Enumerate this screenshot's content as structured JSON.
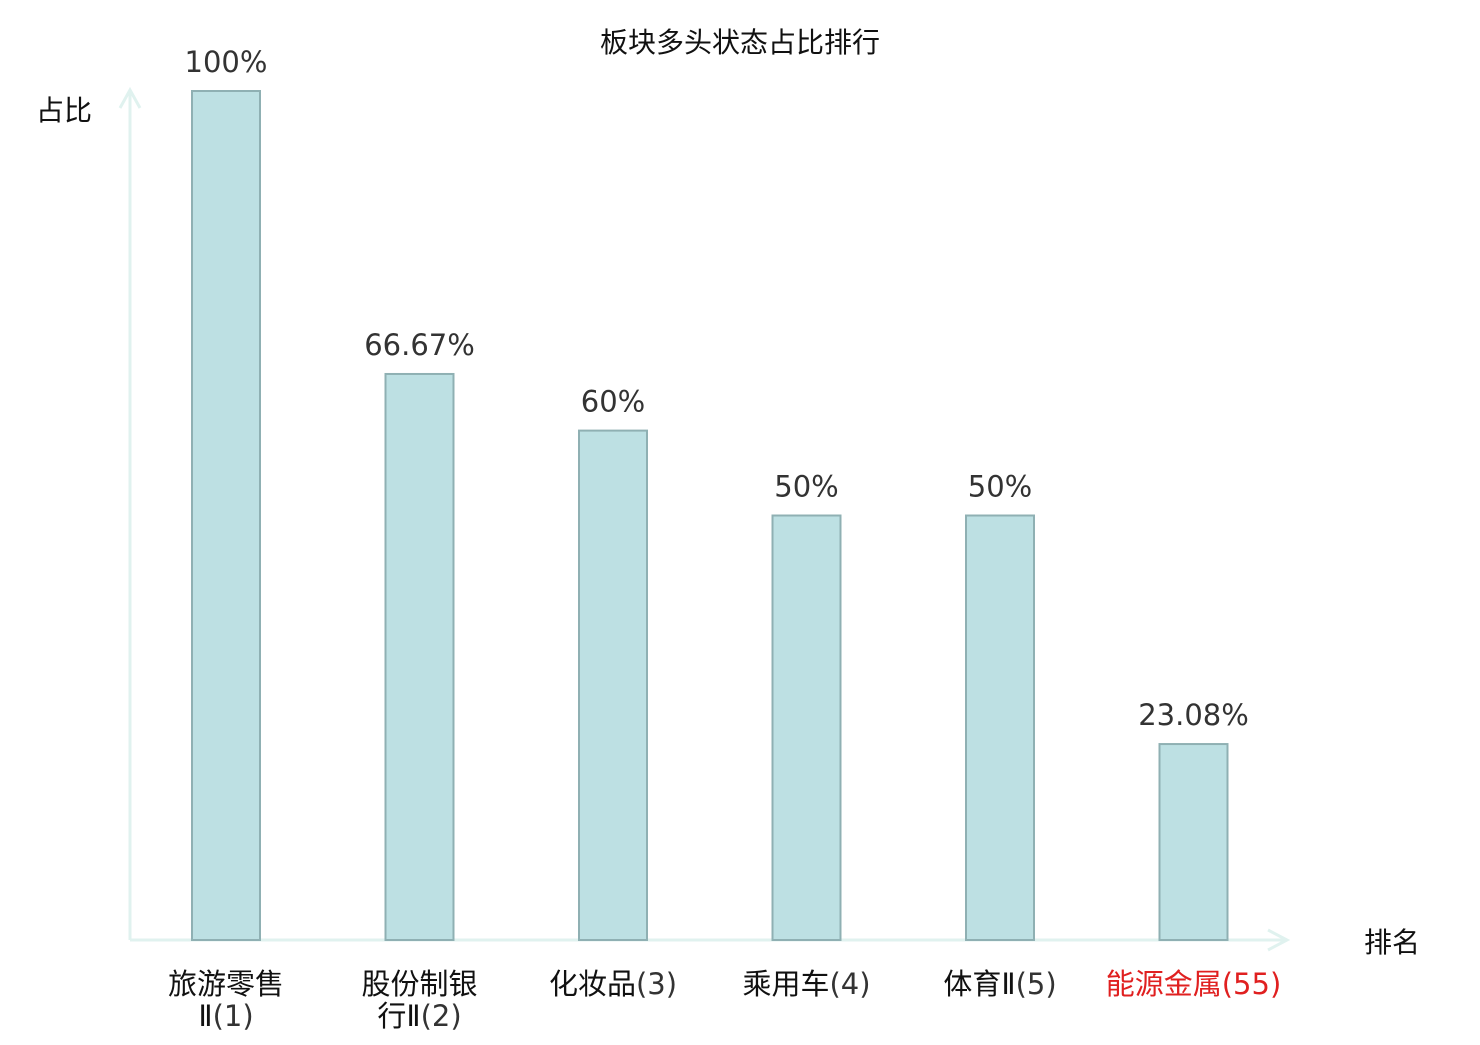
{
  "chart_data": {
    "type": "bar",
    "title": "板块多头状态占比排行",
    "ylabel": "占比",
    "xlabel": "排名",
    "ylim": [
      0,
      100
    ],
    "grid": false,
    "legend": "none",
    "categories": [
      {
        "name_lines": [
          "旅游零售",
          "Ⅱ"
        ],
        "rank": "(1)",
        "value": 100,
        "label": "100%",
        "highlight": false
      },
      {
        "name_lines": [
          "股份制银",
          "行Ⅱ"
        ],
        "rank": "(2)",
        "value": 66.67,
        "label": "66.67%",
        "highlight": false
      },
      {
        "name_lines": [
          "化妆品"
        ],
        "rank": "(3)",
        "value": 60,
        "label": "60%",
        "highlight": false
      },
      {
        "name_lines": [
          "乘用车"
        ],
        "rank": "(4)",
        "value": 50,
        "label": "50%",
        "highlight": false
      },
      {
        "name_lines": [
          "体育Ⅱ"
        ],
        "rank": "(5)",
        "value": 50,
        "label": "50%",
        "highlight": false
      },
      {
        "name_lines": [
          "能源金属"
        ],
        "rank": "(55)",
        "value": 23.08,
        "label": "23.08%",
        "highlight": true
      }
    ],
    "colors": {
      "bar_fill": "#bde0e3",
      "bar_stroke": "#8fb0b3",
      "axis": "#e0f2ef",
      "highlight_text": "#e02020",
      "normal_text": "#111111",
      "rank_text": "#333333"
    }
  }
}
